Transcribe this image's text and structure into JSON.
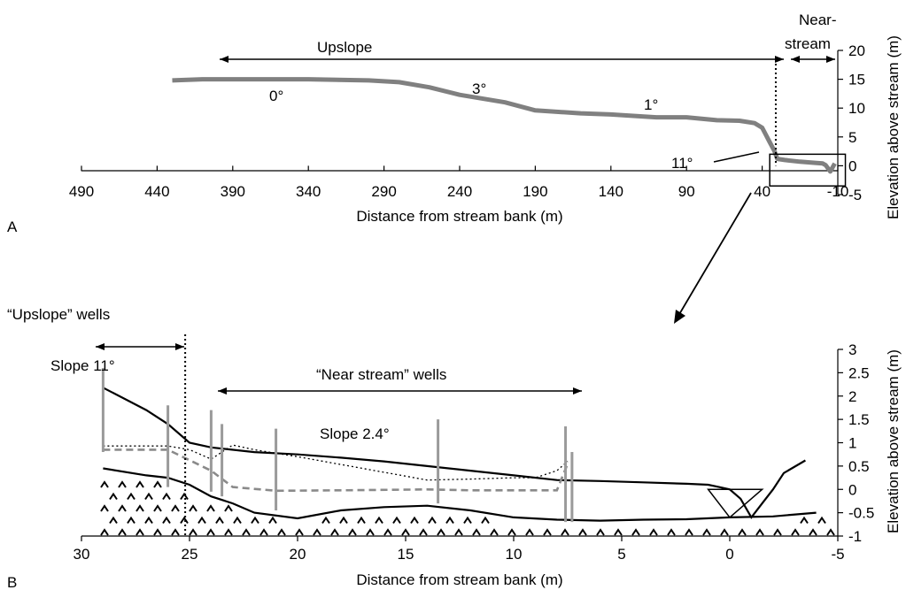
{
  "panels": {
    "a": {
      "letter": "A"
    },
    "b": {
      "letter": "B"
    }
  },
  "chart_data": [
    {
      "type": "line",
      "panel": "A",
      "xlabel": "Distance from stream bank (m)",
      "ylabel": "Elevation above stream (m)",
      "xlim": [
        490,
        -10
      ],
      "ylim": [
        -5,
        20
      ],
      "x_ticks": [
        "490",
        "440",
        "390",
        "340",
        "290",
        "240",
        "190",
        "140",
        "90",
        "40",
        "-10"
      ],
      "y_ticks": [
        "-5",
        "0",
        "5",
        "10",
        "15",
        "20"
      ],
      "annotations": {
        "upslope": "Upslope",
        "near_stream": "Near-\nstream",
        "near_stream_l1": "Near-",
        "near_stream_l2": "stream",
        "slope_0": "0°",
        "slope_3": "3°",
        "slope_1": "1°",
        "slope_11": "11°"
      },
      "profile": {
        "color": "#808080",
        "x": [
          430,
          410,
          380,
          340,
          300,
          280,
          260,
          240,
          210,
          190,
          160,
          140,
          110,
          90,
          70,
          55,
          45,
          40,
          38,
          35,
          32,
          30,
          25,
          15,
          5,
          0,
          -2,
          -5,
          -8
        ],
        "y": [
          14.8,
          15.0,
          15.0,
          15.0,
          14.8,
          14.5,
          13.6,
          12.3,
          11.0,
          9.6,
          9.1,
          8.9,
          8.4,
          8.4,
          7.9,
          7.8,
          7.4,
          6.6,
          5.6,
          4.1,
          2.6,
          1.2,
          1.0,
          0.7,
          0.5,
          0.4,
          0.1,
          -1.0,
          0.4
        ]
      },
      "divider_x": 31,
      "inset_box": {
        "x": [
          35,
          -15
        ],
        "y": [
          -3.5,
          2.0
        ]
      }
    },
    {
      "type": "line",
      "panel": "B",
      "xlabel": "Distance from stream bank (m)",
      "ylabel": "Elevation above stream (m)",
      "xlim": [
        30,
        -5
      ],
      "ylim": [
        -1,
        3
      ],
      "x_ticks": [
        "30",
        "25",
        "20",
        "15",
        "10",
        "5",
        "0",
        "-5"
      ],
      "y_ticks": [
        "-1",
        "-0.5",
        "0",
        "0.5",
        "1",
        "1.5",
        "2",
        "2.5",
        "3"
      ],
      "annotations": {
        "upslope_wells": "“Upslope” wells",
        "near_stream_wells": "“Near stream” wells",
        "slope_11": "Slope 11°",
        "slope_24": "Slope 2.4°"
      },
      "series": [
        {
          "key": "ground_surface",
          "style": "solid",
          "x": [
            29,
            27,
            26,
            25,
            24,
            22,
            20,
            18,
            16,
            14,
            12,
            10,
            8,
            6,
            4,
            2,
            1,
            0.5,
            0,
            -0.5,
            -1,
            -1.5,
            -2,
            -2.5,
            -3.5
          ],
          "y": [
            2.18,
            1.7,
            1.4,
            1.0,
            0.9,
            0.8,
            0.75,
            0.68,
            0.6,
            0.5,
            0.4,
            0.3,
            0.2,
            0.18,
            0.15,
            0.12,
            0.1,
            0.05,
            0,
            -0.2,
            -0.6,
            -0.3,
            0,
            0.35,
            0.62
          ]
        },
        {
          "key": "lower_layer",
          "style": "solid",
          "x": [
            29,
            27,
            26,
            25,
            24,
            23,
            22,
            20,
            18,
            16,
            14,
            12,
            10,
            8,
            6,
            4,
            2,
            0,
            -2,
            -4
          ],
          "y": [
            0.45,
            0.3,
            0.25,
            0.1,
            -0.15,
            -0.3,
            -0.5,
            -0.62,
            -0.45,
            -0.38,
            -0.35,
            -0.45,
            -0.6,
            -0.65,
            -0.67,
            -0.65,
            -0.64,
            -0.6,
            -0.58,
            -0.5
          ]
        },
        {
          "key": "water_table_dotted",
          "style": "dotted",
          "x": [
            29,
            26,
            25,
            24,
            23,
            22,
            20,
            17,
            14,
            12,
            10,
            9,
            8,
            7.5
          ],
          "y": [
            0.93,
            0.93,
            0.85,
            0.65,
            0.95,
            0.85,
            0.7,
            0.45,
            0.2,
            0.22,
            0.25,
            0.25,
            0.4,
            0.6
          ]
        },
        {
          "key": "water_table_dashed",
          "style": "dashed",
          "x": [
            29,
            26,
            24,
            23,
            21,
            18,
            14,
            12,
            10,
            8,
            7.5
          ],
          "y": [
            0.85,
            0.85,
            0.4,
            0.05,
            -0.03,
            -0.02,
            0.0,
            -0.02,
            -0.02,
            -0.02,
            0.55
          ]
        }
      ],
      "wells": {
        "x": [
          29,
          26,
          24,
          23.5,
          21,
          13.5,
          7.6,
          7.3
        ],
        "top": [
          2.6,
          1.8,
          1.7,
          1.4,
          1.3,
          1.5,
          1.35,
          0.8
        ],
        "bottom": [
          0.8,
          0.05,
          -0.05,
          -0.15,
          -0.45,
          -0.3,
          -0.7,
          -0.7
        ]
      },
      "divider_x": 25.2,
      "channel": {
        "x": [
          -1.5,
          0,
          1
        ],
        "y": [
          0.0,
          -0.6,
          0.0
        ]
      }
    }
  ]
}
